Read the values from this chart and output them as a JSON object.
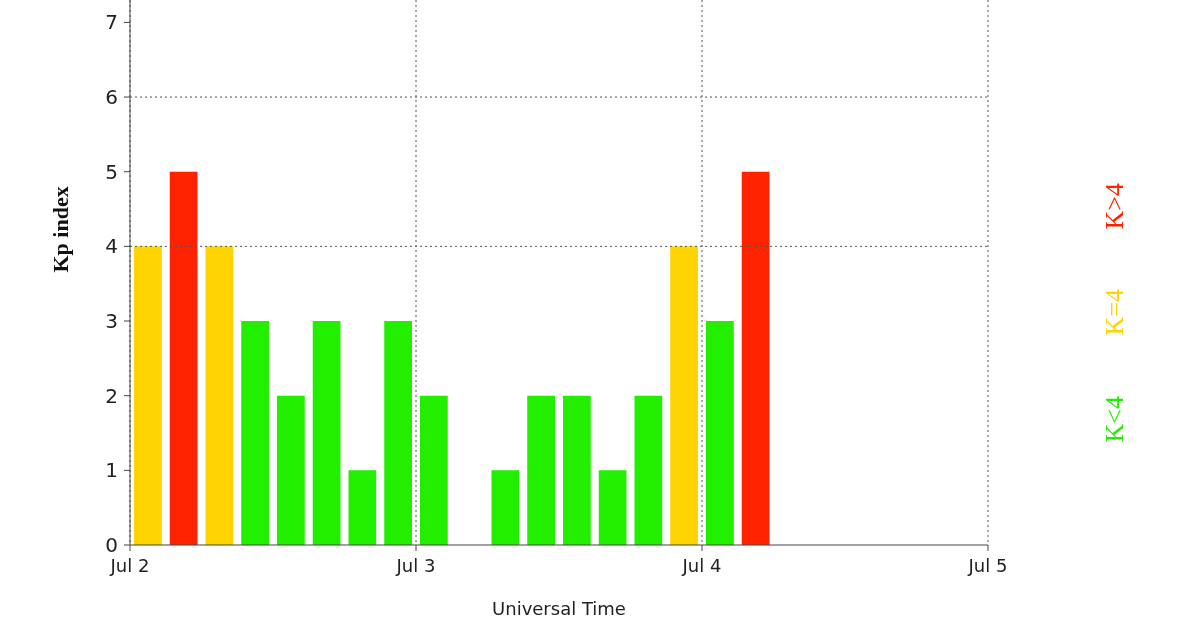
{
  "chart_data": {
    "type": "bar",
    "ylabel": "Kp index",
    "xlabel": "Universal Time",
    "stacked": true,
    "x": [
      "--07-02T01:30",
      "--07-02T04:30",
      "--07-02T07:30",
      "--07-02T10:30",
      "--07-02T13:30",
      "--07-02T16:30",
      "--07-02T19:30",
      "--07-02T22:30",
      "--07-03T01:30",
      "--07-03T04:30",
      "--07-03T07:30",
      "--07-03T10:30",
      "--07-03T13:30",
      "--07-03T16:30",
      "--07-03T19:30",
      "--07-03T22:30",
      "--07-04T01:30",
      "--07-04T04:30"
    ],
    "series": [
      {
        "name": "K<4",
        "color": "#22ee00",
        "values": [
          null,
          null,
          null,
          3,
          2,
          3,
          1,
          3,
          2,
          0,
          1,
          2,
          2,
          1,
          2,
          null,
          3,
          null
        ]
      },
      {
        "name": "K=4",
        "color": "#ffd400",
        "values": [
          4,
          null,
          4,
          null,
          null,
          null,
          null,
          null,
          null,
          null,
          null,
          null,
          null,
          null,
          null,
          4,
          null,
          null
        ]
      },
      {
        "name": "K>4",
        "color": "#ff2200",
        "values": [
          null,
          5,
          null,
          null,
          null,
          null,
          null,
          null,
          null,
          null,
          null,
          null,
          null,
          null,
          null,
          null,
          null,
          5
        ]
      }
    ],
    "xlim": [
      "--07-02",
      "--07-05"
    ],
    "xticks": [
      {
        "value": "--07-02",
        "label": "Jul 2"
      },
      {
        "value": "--07-03",
        "label": "Jul 3"
      },
      {
        "value": "--07-04",
        "label": "Jul 4"
      },
      {
        "value": "--07-05",
        "label": "Jul 5"
      }
    ],
    "ylim": [
      0,
      7.3
    ],
    "yticks": [
      0,
      1,
      2,
      3,
      4,
      5,
      6,
      7
    ],
    "grid": "x",
    "ref_lines": [
      {
        "axis": "y",
        "value": 4,
        "label": null,
        "color": "#555555",
        "line_style": "dotted"
      },
      {
        "axis": "y",
        "value": 6,
        "label": null,
        "color": "#555555",
        "line_style": "dotted"
      }
    ],
    "legend": "right"
  }
}
